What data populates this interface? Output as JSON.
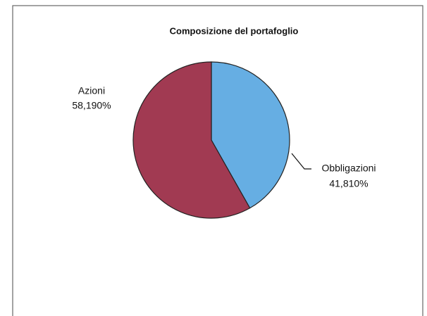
{
  "chart_data": {
    "type": "pie",
    "title": "Composizione del portafoglio",
    "categories": [
      "Obbligazioni",
      "Azioni"
    ],
    "values": [
      41.81,
      58.19
    ],
    "value_labels": [
      "41,810%",
      "58,190%"
    ],
    "colors": [
      "#66aee3",
      "#a13a52"
    ]
  }
}
